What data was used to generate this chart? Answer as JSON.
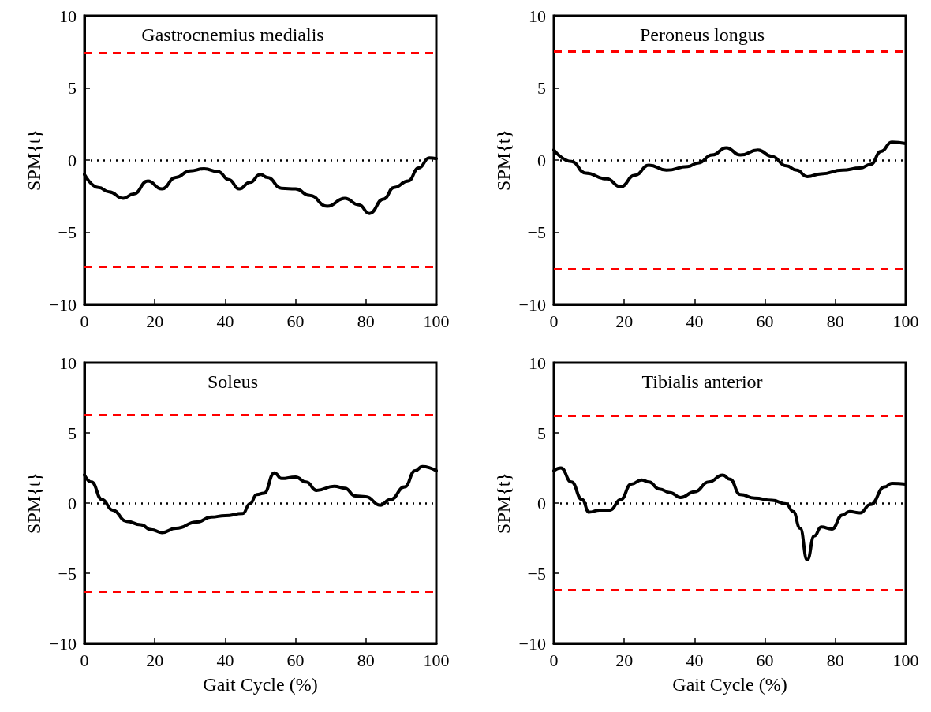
{
  "chart_data": [
    {
      "type": "line",
      "title": "Gastrocnemius medialis",
      "ylabel": "SPM{t}",
      "x": [
        0,
        4,
        7,
        11,
        14,
        18,
        22,
        26,
        30,
        34,
        38,
        41,
        44,
        47,
        50,
        52,
        56,
        60,
        64,
        69,
        74,
        78,
        81,
        85,
        88,
        92,
        95,
        98,
        100
      ],
      "series": [
        {
          "color": "#000000",
          "values": [
            -1.0,
            -1.9,
            -2.2,
            -2.65,
            -2.35,
            -1.45,
            -2.0,
            -1.2,
            -0.75,
            -0.6,
            -0.8,
            -1.35,
            -2.0,
            -1.55,
            -1.0,
            -1.2,
            -1.95,
            -2.0,
            -2.45,
            -3.2,
            -2.65,
            -3.1,
            -3.7,
            -2.7,
            -1.9,
            -1.45,
            -0.55,
            0.15,
            0.1
          ]
        }
      ],
      "xlim": [
        0,
        100
      ],
      "xticks": [
        0,
        20,
        40,
        60,
        80,
        100
      ],
      "ylim": [
        -10,
        10
      ],
      "yticks": [
        -10,
        -5,
        0,
        5,
        10
      ],
      "grid": false,
      "marker": "none",
      "line_style": "solid",
      "ref_lines": [
        {
          "axis": "y",
          "value": 0,
          "color": "#000000",
          "line_style": "dotted"
        },
        {
          "axis": "y",
          "value": 7.4,
          "color": "#ff0000",
          "line_style": "dashed"
        },
        {
          "axis": "y",
          "value": -7.4,
          "color": "#ff0000",
          "line_style": "dashed"
        }
      ]
    },
    {
      "type": "line",
      "title": "Peroneus longus",
      "ylabel": "SPM{t}",
      "x": [
        0,
        5,
        9,
        15,
        19,
        23,
        27,
        32,
        38,
        41,
        45,
        49,
        53,
        58,
        62,
        66,
        69,
        72,
        76,
        82,
        87,
        90,
        93,
        96,
        100
      ],
      "series": [
        {
          "color": "#000000",
          "values": [
            0.7,
            -0.1,
            -0.9,
            -1.3,
            -1.85,
            -1.05,
            -0.35,
            -0.7,
            -0.45,
            -0.2,
            0.35,
            0.85,
            0.35,
            0.7,
            0.25,
            -0.4,
            -0.7,
            -1.15,
            -0.95,
            -0.7,
            -0.55,
            -0.3,
            0.6,
            1.25,
            1.15
          ]
        }
      ],
      "xlim": [
        0,
        100
      ],
      "xticks": [
        0,
        20,
        40,
        60,
        80,
        100
      ],
      "ylim": [
        -10,
        10
      ],
      "yticks": [
        -10,
        -5,
        0,
        5,
        10
      ],
      "grid": false,
      "marker": "none",
      "line_style": "solid",
      "ref_lines": [
        {
          "axis": "y",
          "value": 0,
          "color": "#000000",
          "line_style": "dotted"
        },
        {
          "axis": "y",
          "value": 7.55,
          "color": "#ff0000",
          "line_style": "dashed"
        },
        {
          "axis": "y",
          "value": -7.55,
          "color": "#ff0000",
          "line_style": "dashed"
        }
      ]
    },
    {
      "type": "line",
      "title": "Soleus",
      "xlabel": "Gait Cycle (%)",
      "ylabel": "SPM{t}",
      "x": [
        0,
        2,
        5,
        8,
        12,
        16,
        19,
        22,
        26,
        32,
        36,
        40,
        45,
        47,
        49,
        51,
        54,
        56,
        60,
        63,
        66,
        71,
        74,
        77,
        80,
        84,
        87,
        91,
        94,
        96,
        100
      ],
      "series": [
        {
          "color": "#000000",
          "values": [
            2.0,
            1.5,
            0.25,
            -0.5,
            -1.3,
            -1.55,
            -1.9,
            -2.1,
            -1.8,
            -1.35,
            -1.0,
            -0.9,
            -0.75,
            -0.05,
            0.6,
            0.7,
            2.15,
            1.75,
            1.85,
            1.5,
            0.9,
            1.2,
            1.05,
            0.5,
            0.45,
            -0.15,
            0.25,
            1.15,
            2.3,
            2.6,
            2.3
          ]
        }
      ],
      "xlim": [
        0,
        100
      ],
      "xticks": [
        0,
        20,
        40,
        60,
        80,
        100
      ],
      "ylim": [
        -10,
        10
      ],
      "yticks": [
        -10,
        -5,
        0,
        5,
        10
      ],
      "grid": false,
      "marker": "none",
      "line_style": "solid",
      "ref_lines": [
        {
          "axis": "y",
          "value": 0,
          "color": "#000000",
          "line_style": "dotted"
        },
        {
          "axis": "y",
          "value": 6.3,
          "color": "#ff0000",
          "line_style": "dashed"
        },
        {
          "axis": "y",
          "value": -6.3,
          "color": "#ff0000",
          "line_style": "dashed"
        }
      ]
    },
    {
      "type": "line",
      "title": "Tibialis anterior",
      "xlabel": "Gait Cycle (%)",
      "ylabel": "SPM{t}",
      "x": [
        0,
        2,
        5,
        8,
        10,
        13,
        16,
        19,
        22,
        25,
        27,
        30,
        33,
        36,
        40,
        44,
        48,
        50,
        53,
        57,
        62,
        66,
        68,
        70,
        72,
        74,
        76,
        79,
        82,
        84,
        87,
        90,
        94,
        96,
        100
      ],
      "series": [
        {
          "color": "#000000",
          "values": [
            2.3,
            2.5,
            1.5,
            0.25,
            -0.65,
            -0.5,
            -0.5,
            0.25,
            1.35,
            1.65,
            1.5,
            1.0,
            0.75,
            0.4,
            0.8,
            1.5,
            2.0,
            1.7,
            0.6,
            0.35,
            0.2,
            -0.05,
            -0.6,
            -1.8,
            -4.05,
            -2.35,
            -1.7,
            -1.85,
            -0.85,
            -0.6,
            -0.7,
            -0.1,
            1.15,
            1.4,
            1.35
          ]
        }
      ],
      "xlim": [
        0,
        100
      ],
      "xticks": [
        0,
        20,
        40,
        60,
        80,
        100
      ],
      "ylim": [
        -10,
        10
      ],
      "yticks": [
        -10,
        -5,
        0,
        5,
        10
      ],
      "grid": false,
      "marker": "none",
      "line_style": "solid",
      "ref_lines": [
        {
          "axis": "y",
          "value": 0,
          "color": "#000000",
          "line_style": "dotted"
        },
        {
          "axis": "y",
          "value": 6.2,
          "color": "#ff0000",
          "line_style": "dashed"
        },
        {
          "axis": "y",
          "value": -6.2,
          "color": "#ff0000",
          "line_style": "dashed"
        }
      ]
    }
  ]
}
